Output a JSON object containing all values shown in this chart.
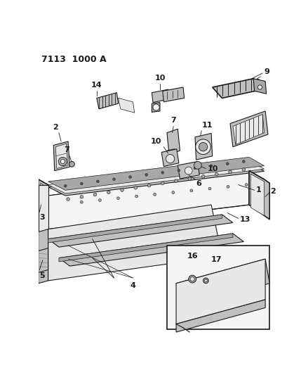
{
  "title": "7113  1000 A",
  "bg_color": "#ffffff",
  "line_color": "#1a1a1a",
  "title_fontsize": 9,
  "fig_width": 4.29,
  "fig_height": 5.33,
  "dpi": 100,
  "label_fs": 8,
  "label_fs_small": 7
}
